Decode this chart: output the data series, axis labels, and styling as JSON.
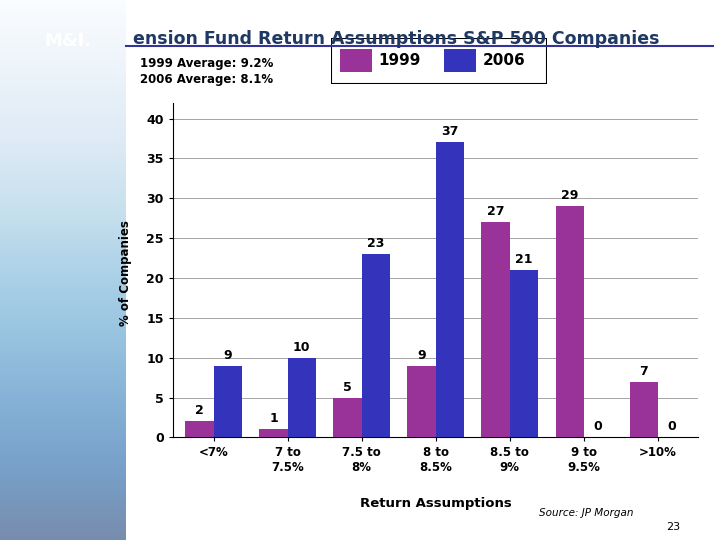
{
  "title": "ension Fund Return Assumptions S&P 500 Companies",
  "categories": [
    "<7%",
    "7 to\n7.5%",
    "7.5 to\n8%",
    "8 to\n8.5%",
    "8.5 to\n9%",
    "9 to\n9.5%",
    ">10%"
  ],
  "values_1999": [
    2,
    1,
    5,
    9,
    27,
    29,
    7
  ],
  "values_2006": [
    9,
    10,
    23,
    37,
    21,
    0,
    0
  ],
  "color_1999": "#993399",
  "color_2006": "#3333bb",
  "ylabel": "% of Companies",
  "xlabel": "Return Assumptions",
  "avg_line1": "1999 Average: 9.2%",
  "avg_line2": "2006 Average: 8.1%",
  "legend_1999": "1999",
  "legend_2006": "2006",
  "ylim": [
    0,
    42
  ],
  "yticks": [
    0,
    5,
    10,
    15,
    20,
    25,
    30,
    35,
    40
  ],
  "source_text": "Source: JP Morgan",
  "page_number": "23",
  "background_color": "#ffffff",
  "strip_left_color": "#c8d8e8",
  "chart_bg": "#ffffff",
  "title_color": "#1f3864",
  "bar_width": 0.38,
  "logo_bg": "#1a3a6b",
  "logo_text": "M&I.",
  "logo_text_color": "#ffffff"
}
